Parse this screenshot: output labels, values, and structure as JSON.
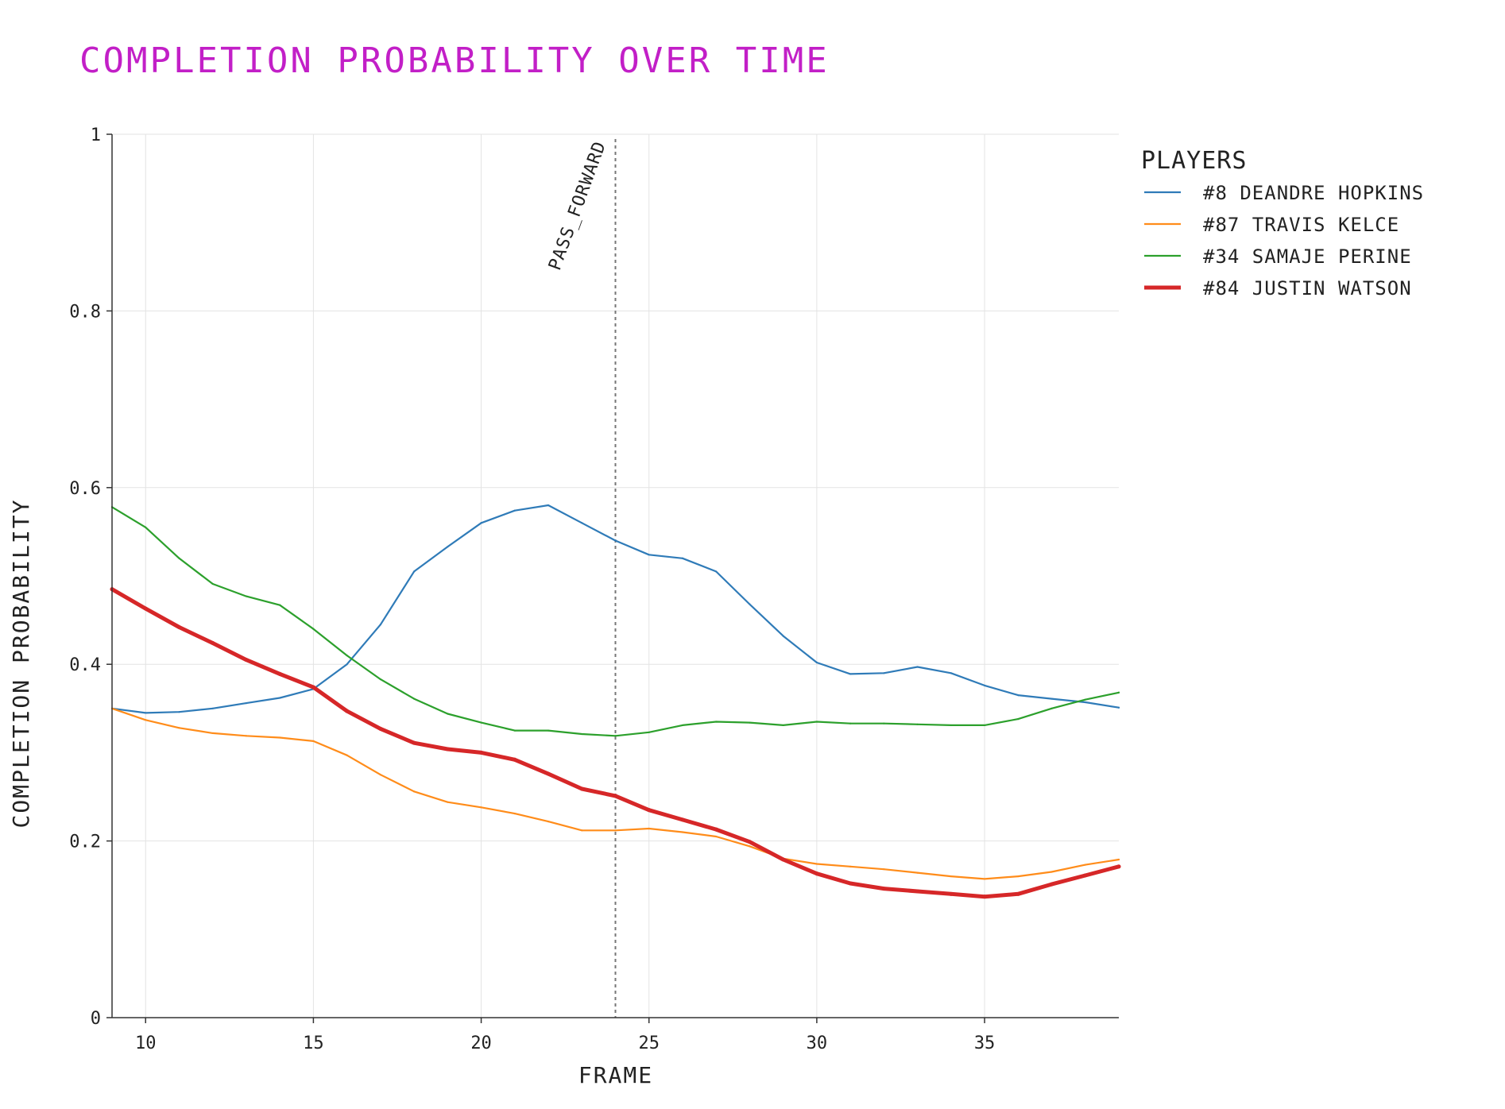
{
  "chart_data": {
    "type": "line",
    "title": "COMPLETION PROBABILITY OVER TIME",
    "xlabel": "FRAME",
    "ylabel": "COMPLETION PROBABILITY",
    "xlim": [
      9,
      39
    ],
    "ylim": [
      0,
      1
    ],
    "x_ticks": [
      10,
      15,
      20,
      25,
      30,
      35
    ],
    "y_ticks": [
      0,
      0.2,
      0.4,
      0.6,
      0.8,
      1
    ],
    "y_tick_labels": [
      "0",
      "0.2",
      "0.4",
      "0.6",
      "0.8",
      "1"
    ],
    "grid": true,
    "legend": {
      "title": "PLAYERS",
      "placement": "top-right, outside plot"
    },
    "annotations": [
      {
        "type": "vertical-dotted-line",
        "x": 24,
        "label": "PASS_FORWARD",
        "color": "#777777"
      }
    ],
    "x": [
      9,
      10,
      11,
      12,
      13,
      14,
      15,
      16,
      17,
      18,
      19,
      20,
      21,
      22,
      23,
      24,
      25,
      26,
      27,
      28,
      29,
      30,
      31,
      32,
      33,
      34,
      35,
      36,
      37,
      38,
      39
    ],
    "series": [
      {
        "name": "#8 DEANDRE HOPKINS",
        "color": "#2f7bb8",
        "stroke_weight": "normal",
        "values": [
          0.35,
          0.345,
          0.346,
          0.35,
          0.356,
          0.362,
          0.372,
          0.4,
          0.445,
          0.505,
          0.533,
          0.56,
          0.574,
          0.58,
          0.56,
          0.54,
          0.524,
          0.52,
          0.505,
          0.468,
          0.432,
          0.402,
          0.389,
          0.39,
          0.397,
          0.39,
          0.376,
          0.365,
          0.361,
          0.357,
          0.351
        ]
      },
      {
        "name": "#87 TRAVIS KELCE",
        "color": "#ff8c1a",
        "stroke_weight": "normal",
        "values": [
          0.35,
          0.337,
          0.328,
          0.322,
          0.319,
          0.317,
          0.313,
          0.297,
          0.275,
          0.256,
          0.244,
          0.238,
          0.231,
          0.222,
          0.212,
          0.212,
          0.214,
          0.21,
          0.205,
          0.194,
          0.18,
          0.174,
          0.171,
          0.168,
          0.164,
          0.16,
          0.157,
          0.16,
          0.165,
          0.173,
          0.179
        ]
      },
      {
        "name": "#34 SAMAJE PERINE",
        "color": "#2ca02c",
        "stroke_weight": "normal",
        "values": [
          0.578,
          0.555,
          0.52,
          0.491,
          0.477,
          0.467,
          0.44,
          0.41,
          0.383,
          0.361,
          0.344,
          0.334,
          0.325,
          0.325,
          0.321,
          0.319,
          0.323,
          0.331,
          0.335,
          0.334,
          0.331,
          0.335,
          0.333,
          0.333,
          0.332,
          0.331,
          0.331,
          0.338,
          0.35,
          0.36,
          0.368
        ]
      },
      {
        "name": "#84 JUSTIN WATSON",
        "color": "#d62728",
        "stroke_weight": "bold",
        "values": [
          0.485,
          0.463,
          0.442,
          0.424,
          0.405,
          0.389,
          0.374,
          0.347,
          0.327,
          0.311,
          0.304,
          0.3,
          0.292,
          0.276,
          0.259,
          0.251,
          0.235,
          0.224,
          0.213,
          0.199,
          0.179,
          0.163,
          0.152,
          0.146,
          0.143,
          0.14,
          0.137,
          0.14,
          0.151,
          0.161,
          0.171
        ]
      }
    ]
  }
}
